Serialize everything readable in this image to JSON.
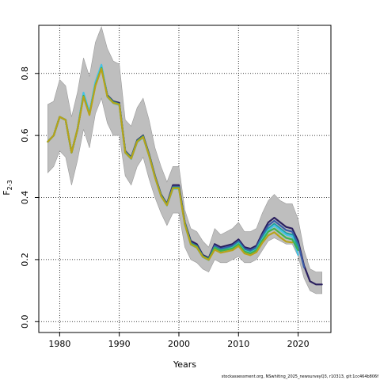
{
  "chart_data": {
    "type": "line",
    "title": "",
    "xlabel": "Years",
    "ylabel_main": "F",
    "ylabel_sub": "2-3",
    "xlim": [
      1976.5,
      2025.5
    ],
    "ylim": [
      -0.035,
      0.955
    ],
    "x_ticks": [
      1980,
      1990,
      2000,
      2010,
      2020
    ],
    "y_ticks": [
      0.0,
      0.2,
      0.4,
      0.6,
      0.8
    ],
    "x_tick_labels": [
      "1980",
      "1990",
      "2000",
      "2010",
      "2020"
    ],
    "y_tick_labels": [
      "0.0",
      "0.2",
      "0.4",
      "0.6",
      "0.8"
    ],
    "grid": true,
    "band_color": "#bebebe",
    "x": [
      1978,
      1979,
      1980,
      1981,
      1982,
      1983,
      1984,
      1985,
      1986,
      1987,
      1988,
      1989,
      1990,
      1991,
      1992,
      1993,
      1994,
      1995,
      1996,
      1997,
      1998,
      1999,
      2000,
      2001,
      2002,
      2003,
      2004,
      2005,
      2006,
      2007,
      2008,
      2009,
      2010,
      2011,
      2012,
      2013,
      2014,
      2015,
      2016,
      2017,
      2018,
      2019,
      2020,
      2021,
      2022,
      2023,
      2024
    ],
    "band_upper": [
      0.7,
      0.71,
      0.78,
      0.76,
      0.66,
      0.74,
      0.85,
      0.79,
      0.9,
      0.95,
      0.88,
      0.84,
      0.83,
      0.65,
      0.63,
      0.69,
      0.72,
      0.65,
      0.56,
      0.5,
      0.45,
      0.5,
      0.5,
      0.36,
      0.3,
      0.29,
      0.26,
      0.24,
      0.3,
      0.28,
      0.29,
      0.3,
      0.32,
      0.29,
      0.29,
      0.3,
      0.35,
      0.39,
      0.41,
      0.39,
      0.38,
      0.38,
      0.33,
      0.23,
      0.17,
      0.16,
      0.16
    ],
    "band_lower": [
      0.48,
      0.5,
      0.55,
      0.53,
      0.44,
      0.52,
      0.62,
      0.56,
      0.67,
      0.72,
      0.64,
      0.6,
      0.6,
      0.47,
      0.44,
      0.5,
      0.53,
      0.46,
      0.4,
      0.35,
      0.31,
      0.35,
      0.35,
      0.24,
      0.2,
      0.19,
      0.17,
      0.16,
      0.2,
      0.19,
      0.19,
      0.2,
      0.21,
      0.19,
      0.19,
      0.2,
      0.23,
      0.26,
      0.27,
      0.26,
      0.25,
      0.25,
      0.21,
      0.14,
      0.1,
      0.09,
      0.09
    ],
    "series": [
      {
        "color": "#2a1f5e",
        "values": [
          0.58,
          0.6,
          0.66,
          0.65,
          0.545,
          0.62,
          0.73,
          0.67,
          0.765,
          0.82,
          0.73,
          0.71,
          0.705,
          0.55,
          0.53,
          0.585,
          0.6,
          0.54,
          0.47,
          0.41,
          0.38,
          0.44,
          0.44,
          0.32,
          0.26,
          0.25,
          0.215,
          0.205,
          0.25,
          0.24,
          0.245,
          0.25,
          0.265,
          0.24,
          0.235,
          0.245,
          0.285,
          0.32,
          0.335,
          0.32,
          0.305,
          0.3,
          0.26,
          0.18,
          0.13,
          0.12,
          0.12
        ]
      },
      {
        "color": "#3b5ca8",
        "values": [
          0.58,
          0.6,
          0.66,
          0.65,
          0.545,
          0.62,
          0.732,
          0.67,
          0.768,
          0.822,
          0.728,
          0.708,
          0.702,
          0.548,
          0.528,
          0.583,
          0.598,
          0.538,
          0.468,
          0.408,
          0.378,
          0.435,
          0.435,
          0.318,
          0.255,
          0.245,
          0.212,
          0.202,
          0.245,
          0.235,
          0.24,
          0.245,
          0.26,
          0.235,
          0.23,
          0.24,
          0.278,
          0.31,
          0.325,
          0.31,
          0.295,
          0.29,
          0.25,
          0.175,
          null,
          null,
          null
        ]
      },
      {
        "color": "#1f9e9a",
        "values": [
          0.58,
          0.6,
          0.66,
          0.65,
          0.545,
          0.62,
          0.735,
          0.672,
          0.77,
          0.825,
          0.726,
          0.706,
          0.7,
          0.546,
          0.526,
          0.58,
          0.596,
          0.536,
          0.466,
          0.406,
          0.376,
          0.43,
          0.43,
          0.315,
          0.25,
          0.24,
          0.21,
          0.2,
          0.24,
          0.23,
          0.235,
          0.24,
          0.255,
          0.23,
          0.225,
          0.235,
          0.27,
          0.3,
          0.315,
          0.3,
          0.285,
          0.28,
          0.24,
          null,
          null,
          null,
          null
        ]
      },
      {
        "color": "#47c2e6",
        "values": [
          0.58,
          0.6,
          0.66,
          0.65,
          0.545,
          0.62,
          0.738,
          0.674,
          0.772,
          0.828,
          0.724,
          0.704,
          0.698,
          0.544,
          0.524,
          0.578,
          0.594,
          0.534,
          0.464,
          0.404,
          0.374,
          0.428,
          0.428,
          0.312,
          0.248,
          0.238,
          0.208,
          0.198,
          0.238,
          0.228,
          0.232,
          0.238,
          0.252,
          0.228,
          0.222,
          0.232,
          0.265,
          0.295,
          0.31,
          0.295,
          0.28,
          0.275,
          0.215,
          null,
          null,
          null,
          null
        ]
      },
      {
        "color": "#3fb34f",
        "values": [
          0.58,
          0.6,
          0.66,
          0.65,
          0.545,
          0.62,
          0.728,
          0.668,
          0.762,
          0.818,
          0.727,
          0.707,
          0.701,
          0.547,
          0.527,
          0.582,
          0.597,
          0.537,
          0.467,
          0.407,
          0.377,
          0.432,
          0.432,
          0.316,
          0.252,
          0.242,
          0.211,
          0.201,
          0.238,
          0.228,
          0.232,
          0.236,
          0.25,
          0.226,
          0.22,
          0.23,
          0.262,
          0.29,
          0.3,
          0.285,
          0.27,
          0.265,
          0.23,
          null,
          null,
          null,
          null
        ]
      },
      {
        "color": "#b8a21a",
        "values": [
          0.58,
          0.6,
          0.66,
          0.65,
          0.545,
          0.62,
          0.725,
          0.666,
          0.76,
          0.815,
          0.725,
          0.705,
          0.7,
          0.545,
          0.525,
          0.58,
          0.595,
          0.535,
          0.465,
          0.405,
          0.375,
          0.43,
          0.43,
          0.313,
          0.249,
          0.239,
          0.209,
          0.199,
          0.232,
          0.222,
          0.226,
          0.23,
          0.244,
          0.22,
          0.214,
          0.224,
          0.254,
          0.278,
          0.288,
          0.272,
          0.258,
          0.255,
          null,
          null,
          null,
          null,
          null
        ]
      }
    ]
  },
  "footer": "stockassessment.org, NSwhiting_2025_newsurveyQ3, r10313, git:1cc464b806f"
}
